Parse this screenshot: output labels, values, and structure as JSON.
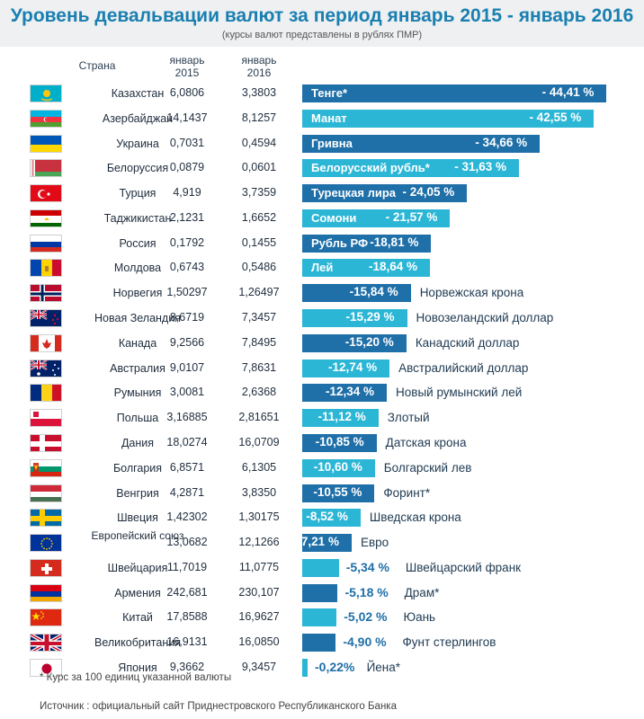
{
  "title": "Уровень девальвации валют за период январь 2015 - январь 2016",
  "subtitle": "(курсы валют представлены в рублях ПМР)",
  "headers": {
    "country": "Страна",
    "jan2015": "январь\n2015",
    "jan2016": "январь\n2016"
  },
  "footnote": "* Курс за 100 единиц указанной валюты",
  "source": "Источник : официальный сайт Приднестровского Республиканского Банка",
  "colors": {
    "dark": "#1f6fa8",
    "light": "#2cb6d6",
    "title": "#1a7fb1"
  },
  "chart_data": {
    "type": "bar",
    "orientation": "horizontal",
    "title": "Уровень девальвации валют за период январь 2015 - январь 2016",
    "subtitle": "(курсы валют представлены в рублях ПМР)",
    "columns": [
      "Страна",
      "январь 2015",
      "январь 2016"
    ],
    "rows": [
      {
        "country": "Казахстан",
        "v2015": "6,0806",
        "v2016": "3,3803",
        "currency": "Тенге*",
        "pct_label": "- 44,41 %",
        "value": -44.41,
        "flag": "kazakhstan"
      },
      {
        "country": "Азербайджан",
        "v2015": "14,1437",
        "v2016": "8,1257",
        "currency": "Манат",
        "pct_label": "- 42,55 %",
        "value": -42.55,
        "flag": "azerbaijan"
      },
      {
        "country": "Украина",
        "v2015": "0,7031",
        "v2016": "0,4594",
        "currency": "Гривна",
        "pct_label": "- 34,66 %",
        "value": -34.66,
        "flag": "ukraine"
      },
      {
        "country": "Белоруссия",
        "v2015": "0,0879",
        "v2016": "0,0601",
        "currency": "Белорусский рубль*",
        "pct_label": "- 31,63 %",
        "value": -31.63,
        "flag": "belarus"
      },
      {
        "country": "Турция",
        "v2015": "4,919",
        "v2016": "3,7359",
        "currency": "Турецкая лира",
        "pct_label": "- 24,05 %",
        "value": -24.05,
        "flag": "turkey"
      },
      {
        "country": "Таджикистан",
        "v2015": "2,1231",
        "v2016": "1,6652",
        "currency": "Сомони",
        "pct_label": "- 21,57 %",
        "value": -21.57,
        "flag": "tajikistan"
      },
      {
        "country": "Россия",
        "v2015": "0,1792",
        "v2016": "0,1455",
        "currency": "Рубль РФ",
        "pct_label": "-18,81 %",
        "value": -18.81,
        "flag": "russia"
      },
      {
        "country": "Молдова",
        "v2015": "0,6743",
        "v2016": "0,5486",
        "currency": "Лей",
        "pct_label": "-18,64 %",
        "value": -18.64,
        "flag": "moldova"
      },
      {
        "country": "Норвегия",
        "v2015": "1,50297",
        "v2016": "1,26497",
        "currency": "Норвежская крона",
        "pct_label": "-15,84 %",
        "value": -15.84,
        "flag": "norway"
      },
      {
        "country": "Новая Зеландия",
        "v2015": "8,6719",
        "v2016": "7,3457",
        "currency": "Новозеландский доллар",
        "pct_label": "-15,29 %",
        "value": -15.29,
        "flag": "new-zealand"
      },
      {
        "country": "Канада",
        "v2015": "9,2566",
        "v2016": "7,8495",
        "currency": "Канадский доллар",
        "pct_label": "-15,20 %",
        "value": -15.2,
        "flag": "canada"
      },
      {
        "country": "Австралия",
        "v2015": "9,0107",
        "v2016": "7,8631",
        "currency": "Австралийский доллар",
        "pct_label": "-12,74 %",
        "value": -12.74,
        "flag": "australia"
      },
      {
        "country": "Румыния",
        "v2015": "3,0081",
        "v2016": "2,6368",
        "currency": "Новый румынский лей",
        "pct_label": "-12,34 %",
        "value": -12.34,
        "flag": "romania"
      },
      {
        "country": "Польша",
        "v2015": "3,16885",
        "v2016": "2,81651",
        "currency": "Злотый",
        "pct_label": "-11,12 %",
        "value": -11.12,
        "flag": "poland"
      },
      {
        "country": "Дания",
        "v2015": "18,0274",
        "v2016": "16,0709",
        "currency": "Датская крона",
        "pct_label": "-10,85 %",
        "value": -10.85,
        "flag": "denmark"
      },
      {
        "country": "Болгария",
        "v2015": "6,8571",
        "v2016": "6,1305",
        "currency": "Болгарский лев",
        "pct_label": "-10,60 %",
        "value": -10.6,
        "flag": "bulgaria"
      },
      {
        "country": "Венгрия",
        "v2015": "4,2871",
        "v2016": "3,8350",
        "currency": "Форинт*",
        "pct_label": "-10,55 %",
        "value": -10.55,
        "flag": "hungary"
      },
      {
        "country": "Швеция",
        "v2015": "1,42302",
        "v2016": "1,30175",
        "currency": "Шведская крона",
        "pct_label": "-8,52 %",
        "value": -8.52,
        "flag": "sweden"
      },
      {
        "country": "Европейский союз",
        "v2015": "13,0682",
        "v2016": "12,1266",
        "currency": "Евро",
        "pct_label": "-7,21 %",
        "value": -7.21,
        "flag": "eu"
      },
      {
        "country": "Швейцария",
        "v2015": "11,7019",
        "v2016": "11,0775",
        "currency": "Швейцарский франк",
        "pct_label": "-5,34 %",
        "value": -5.34,
        "flag": "switzerland"
      },
      {
        "country": "Армения",
        "v2015": "242,681",
        "v2016": "230,107",
        "currency": "Драм*",
        "pct_label": "-5,18 %",
        "value": -5.18,
        "flag": "armenia"
      },
      {
        "country": "Китай",
        "v2015": "17,8588",
        "v2016": "16,9627",
        "currency": "Юань",
        "pct_label": "-5,02 %",
        "value": -5.02,
        "flag": "china"
      },
      {
        "country": "Великобритания",
        "v2015": "16,9131",
        "v2016": "16,0850",
        "currency": "Фунт стерлингов",
        "pct_label": "-4,90 %",
        "value": -4.9,
        "flag": "uk"
      },
      {
        "country": "Япония",
        "v2015": "9,3662",
        "v2016": "9,3457",
        "currency": "Йена*",
        "pct_label": "-0,22%",
        "value": -0.22,
        "flag": "japan"
      }
    ]
  }
}
